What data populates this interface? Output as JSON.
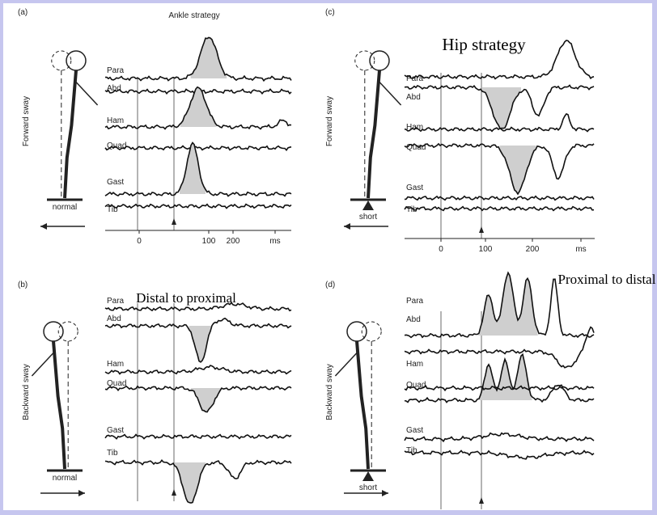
{
  "panels": [
    {
      "label": "(a)",
      "title": "Ankle strategy",
      "sway": "Forward sway",
      "stance": "normal",
      "muscles": [
        "Para",
        "Abd",
        "Ham",
        "Quad",
        "Gast",
        "Tib"
      ],
      "axis_labels": [
        "0",
        "100",
        "200",
        "ms"
      ]
    },
    {
      "label": "(b)",
      "title": "Distal to proximal",
      "sway": "Backward sway",
      "stance": "normal",
      "muscles": [
        "Para",
        "Abd",
        "Ham",
        "Quad",
        "Gast",
        "Tib"
      ]
    },
    {
      "label": "(c)",
      "title": "Hip strategy",
      "sway": "Forward sway",
      "stance": "short",
      "muscles": [
        "Para",
        "Abd",
        "Ham",
        "Quad",
        "Gast",
        "Tib"
      ],
      "axis_labels": [
        "0",
        "100",
        "200",
        "ms"
      ]
    },
    {
      "label": "(d)",
      "title": "Proximal to distal",
      "sway": "Backward sway",
      "stance": "short",
      "muscles": [
        "Para",
        "Abd",
        "Ham",
        "Quad",
        "Gast",
        "Tib"
      ]
    }
  ]
}
